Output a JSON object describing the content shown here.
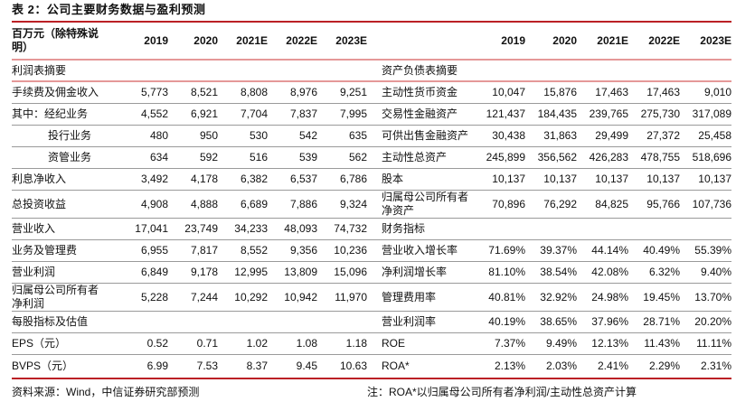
{
  "title": "表 2：公司主要财务数据与盈利预测",
  "colors": {
    "accent_red": "#bb2025",
    "section_line_salmon": "#e59898",
    "grid_gray": "#9a9a9a"
  },
  "table": {
    "unit_label": "百万元（除特殊说明）",
    "years": [
      "2019",
      "2020",
      "2021E",
      "2022E",
      "2023E"
    ],
    "rows": [
      {
        "border": "salmon",
        "l": {
          "label": "利润表摘要",
          "section": true,
          "values": [
            "",
            "",
            "",
            "",
            ""
          ]
        },
        "r": {
          "label": "资产负债表摘要",
          "section": true,
          "values": [
            "",
            "",
            "",
            "",
            ""
          ]
        }
      },
      {
        "border": "gray",
        "l": {
          "label": "手续费及佣金收入",
          "values": [
            "5,773",
            "8,521",
            "8,808",
            "8,976",
            "9,251"
          ]
        },
        "r": {
          "label": "主动性货币资金",
          "values": [
            "10,047",
            "15,876",
            "17,463",
            "17,463",
            "9,010"
          ]
        }
      },
      {
        "border": "gray",
        "l": {
          "label": "其中：经纪业务",
          "values": [
            "4,552",
            "6,921",
            "7,704",
            "7,837",
            "7,995"
          ]
        },
        "r": {
          "label": "交易性金融资产",
          "values": [
            "121,437",
            "184,435",
            "239,765",
            "275,730",
            "317,089"
          ]
        }
      },
      {
        "border": "gray",
        "l": {
          "label": "投行业务",
          "indent": true,
          "values": [
            "480",
            "950",
            "530",
            "542",
            "635"
          ]
        },
        "r": {
          "label": "可供出售金融资产",
          "values": [
            "30,438",
            "31,863",
            "29,499",
            "27,372",
            "25,458"
          ]
        }
      },
      {
        "border": "gray",
        "l": {
          "label": "资管业务",
          "indent": true,
          "values": [
            "634",
            "592",
            "516",
            "539",
            "562"
          ]
        },
        "r": {
          "label": "主动性总资产",
          "values": [
            "245,899",
            "356,562",
            "426,283",
            "478,755",
            "518,696"
          ]
        }
      },
      {
        "border": "gray",
        "l": {
          "label": "利息净收入",
          "values": [
            "3,492",
            "4,178",
            "6,382",
            "6,537",
            "6,786"
          ]
        },
        "r": {
          "label": "股本",
          "values": [
            "10,137",
            "10,137",
            "10,137",
            "10,137",
            "10,137"
          ]
        }
      },
      {
        "border": "gray",
        "l": {
          "label": "总投资收益",
          "values": [
            "4,908",
            "4,888",
            "6,689",
            "7,886",
            "9,324"
          ]
        },
        "r": {
          "label": "归属母公司所有者净资产",
          "values": [
            "70,896",
            "76,292",
            "84,825",
            "95,766",
            "107,736"
          ]
        }
      },
      {
        "border": "gray",
        "l": {
          "label": "营业收入",
          "values": [
            "17,041",
            "23,749",
            "34,233",
            "48,093",
            "74,732"
          ]
        },
        "r": {
          "label": "财务指标",
          "section": true,
          "values": [
            "",
            "",
            "",
            "",
            ""
          ]
        }
      },
      {
        "border": "gray",
        "l": {
          "label": "业务及管理费",
          "values": [
            "6,955",
            "7,817",
            "8,552",
            "9,356",
            "10,236"
          ]
        },
        "r": {
          "label": "营业收入增长率",
          "values": [
            "71.69%",
            "39.37%",
            "44.14%",
            "40.49%",
            "55.39%"
          ]
        }
      },
      {
        "border": "gray",
        "l": {
          "label": "营业利润",
          "values": [
            "6,849",
            "9,178",
            "12,995",
            "13,809",
            "15,096"
          ]
        },
        "r": {
          "label": "净利润增长率",
          "values": [
            "81.10%",
            "38.54%",
            "42.08%",
            "6.32%",
            "9.40%"
          ]
        }
      },
      {
        "border": "gray",
        "l": {
          "label": "归属母公司所有者净利润",
          "values": [
            "5,228",
            "7,244",
            "10,292",
            "10,942",
            "11,970"
          ]
        },
        "r": {
          "label": "管理费用率",
          "values": [
            "40.81%",
            "32.92%",
            "24.98%",
            "19.45%",
            "13.70%"
          ]
        }
      },
      {
        "border": "gray",
        "l": {
          "label": "每股指标及估值",
          "section": true,
          "values": [
            "",
            "",
            "",
            "",
            ""
          ]
        },
        "r": {
          "label": "营业利润率",
          "values": [
            "40.19%",
            "38.65%",
            "37.96%",
            "28.71%",
            "20.20%"
          ]
        }
      },
      {
        "border": "gray",
        "l": {
          "label": "EPS（元）",
          "values": [
            "0.52",
            "0.71",
            "1.02",
            "1.08",
            "1.18"
          ]
        },
        "r": {
          "label": "ROE",
          "values": [
            "7.37%",
            "9.49%",
            "12.13%",
            "11.43%",
            "11.11%"
          ]
        }
      },
      {
        "border": "none",
        "last": true,
        "l": {
          "label": "BVPS（元）",
          "values": [
            "6.99",
            "7.53",
            "8.37",
            "9.45",
            "10.63"
          ]
        },
        "r": {
          "label": "ROA*",
          "values": [
            "2.13%",
            "2.03%",
            "2.41%",
            "2.29%",
            "2.31%"
          ]
        }
      }
    ]
  },
  "footer": {
    "source": "资料来源：Wind，中信证券研究部预测",
    "note": "注：ROA*以归属母公司所有者净利润/主动性总资产计算"
  }
}
